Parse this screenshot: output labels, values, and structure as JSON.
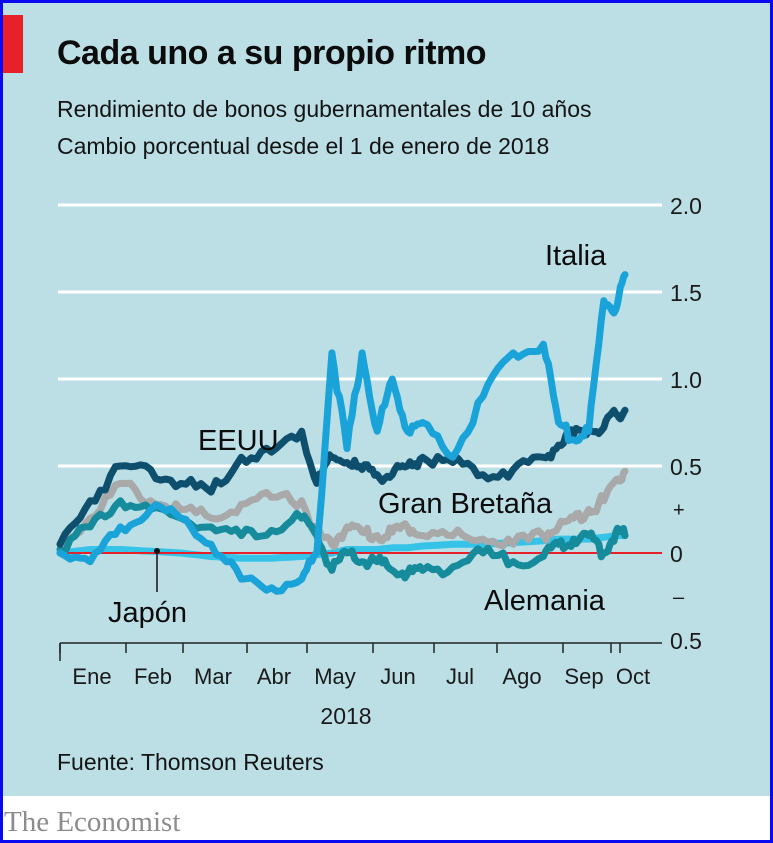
{
  "title": "Cada uno a su propio ritmo",
  "subtitle_1": "Rendimiento de bonos gubernamentales de 10 años",
  "subtitle_2": "Cambio porcentual desde el 1 de enero de 2018",
  "source": "Fuente: Thomson Reuters",
  "brand": "The Economist",
  "colors": {
    "background": "#bcdfe6",
    "accent_red": "#e8202a",
    "frame": "#0a0af0"
  },
  "chart_data": {
    "type": "line",
    "title": "Cada uno a su propio ritmo",
    "subtitle": "Rendimiento de bonos gubernamentales de 10 años — Cambio porcentual desde el 1 de enero de 2018",
    "xlabel": "2018",
    "ylabel": "",
    "x_tick_labels": [
      "Ene",
      "Feb",
      "Mar",
      "Abr",
      "May",
      "Jun",
      "Jul",
      "Ago",
      "Sep",
      "Oct"
    ],
    "y_tick_labels": [
      "2.0",
      "1.5",
      "1.0",
      "0.5",
      "0",
      "0.5"
    ],
    "y_sign_labels": {
      "plus": "+",
      "minus": "–"
    },
    "y_ticks": [
      2.0,
      1.5,
      1.0,
      0.5,
      0,
      -0.5
    ],
    "ylim": [
      -0.5,
      2.0
    ],
    "xlim": [
      0,
      9.4
    ],
    "grid": true,
    "zero_line_color": "#e8202a",
    "x_months": [
      0,
      0.5,
      1,
      1.5,
      2,
      2.5,
      3,
      3.5,
      4,
      4.25,
      4.5,
      4.75,
      5,
      5.25,
      5.5,
      5.75,
      6,
      6.5,
      7,
      7.5,
      8,
      8.25,
      8.5,
      8.75,
      9,
      9.2,
      9.35
    ],
    "series": [
      {
        "name": "Italia",
        "label": "Italia",
        "color": "#1aa3d9",
        "values": [
          0.0,
          -0.05,
          0.15,
          0.25,
          0.2,
          0.05,
          -0.15,
          -0.2,
          -0.15,
          0.0,
          1.15,
          0.6,
          1.15,
          0.7,
          1.0,
          0.7,
          0.75,
          0.55,
          0.9,
          1.15,
          1.2,
          0.75,
          0.65,
          0.7,
          1.45,
          1.4,
          1.6
        ]
      },
      {
        "name": "EEUU",
        "label": "EEUU",
        "color": "#0f4f6e",
        "values": [
          0.05,
          0.3,
          0.5,
          0.48,
          0.4,
          0.35,
          0.55,
          0.58,
          0.7,
          0.4,
          0.55,
          0.52,
          0.48,
          0.45,
          0.45,
          0.5,
          0.55,
          0.52,
          0.45,
          0.48,
          0.55,
          0.62,
          0.68,
          0.7,
          0.72,
          0.8,
          0.82
        ]
      },
      {
        "name": "Gran Bretaña",
        "label": "Gran Bretaña",
        "color": "#a9a9a9",
        "values": [
          0.05,
          0.2,
          0.4,
          0.3,
          0.25,
          0.2,
          0.28,
          0.32,
          0.3,
          0.1,
          0.05,
          0.15,
          0.12,
          0.1,
          0.12,
          0.15,
          0.1,
          0.1,
          0.08,
          0.05,
          0.1,
          0.15,
          0.2,
          0.25,
          0.3,
          0.42,
          0.47
        ]
      },
      {
        "name": "Alemania",
        "label": "Alemania",
        "color": "#168b9c",
        "values": [
          0.02,
          0.15,
          0.3,
          0.25,
          0.2,
          0.15,
          0.1,
          0.13,
          0.2,
          0.1,
          -0.1,
          0.0,
          -0.05,
          -0.05,
          -0.1,
          -0.12,
          -0.1,
          -0.08,
          0.0,
          -0.05,
          -0.02,
          0.05,
          0.08,
          0.1,
          0.0,
          0.12,
          0.1
        ]
      },
      {
        "name": "Japón",
        "label": "Japón",
        "color": "#35c3e8",
        "values": [
          0.0,
          0.02,
          0.02,
          0.01,
          0.0,
          -0.02,
          -0.03,
          -0.03,
          -0.02,
          -0.01,
          0.0,
          0.02,
          0.02,
          0.02,
          0.03,
          0.03,
          0.04,
          0.05,
          0.05,
          0.06,
          0.07,
          0.08,
          0.08,
          0.08,
          0.09,
          0.1,
          0.1
        ]
      }
    ],
    "annotations": [
      {
        "text": "Italia",
        "series": "Italia"
      },
      {
        "text": "EEUU",
        "series": "EEUU"
      },
      {
        "text": "Gran Bretaña",
        "series": "Gran Bretaña"
      },
      {
        "text": "Alemania",
        "series": "Alemania"
      },
      {
        "text": "Japón",
        "series": "Japón",
        "pointer": true
      }
    ]
  }
}
